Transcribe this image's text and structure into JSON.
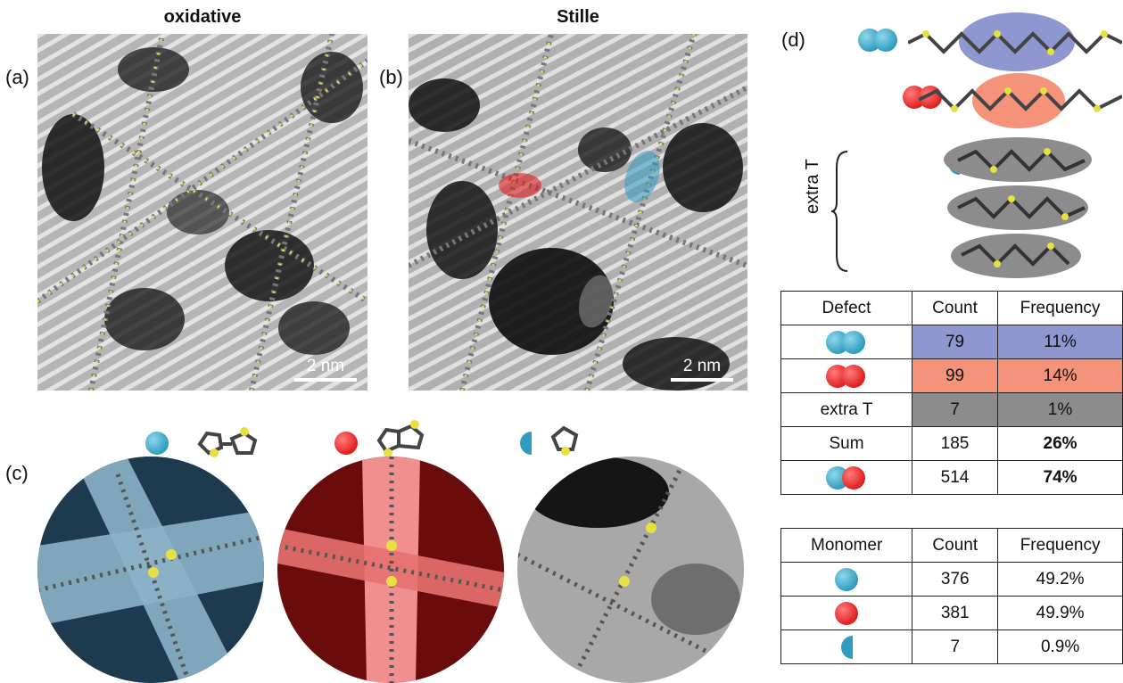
{
  "panels": {
    "a": {
      "label": "(a)",
      "title": "oxidative",
      "scale": "2 nm"
    },
    "b": {
      "label": "(b)",
      "title": "Stille",
      "scale": "2 nm"
    },
    "c": {
      "label": "(c)"
    },
    "d": {
      "label": "(d)",
      "extra_label": "extra T"
    }
  },
  "colors": {
    "blue": "#2f9bbf",
    "red": "#e01f1f",
    "purple_hl": "#8e97cf",
    "salmon_hl": "#f4937a",
    "gray_hl": "#8c8c8c"
  },
  "defect_table": {
    "headers": [
      "Defect",
      "Count",
      "Frequency"
    ],
    "rows": [
      {
        "icon": "blue-blue-pair-icon",
        "count": "79",
        "frequency": "11%"
      },
      {
        "icon": "red-red-pair-icon",
        "count": "99",
        "frequency": "14%"
      },
      {
        "label": "extra T",
        "count": "7",
        "frequency": "1%"
      },
      {
        "label": "Sum",
        "count": "185",
        "frequency": "26%"
      },
      {
        "icon": "blue-red-pair-icon",
        "count": "514",
        "frequency": "74%"
      }
    ]
  },
  "monomer_table": {
    "headers": [
      "Monomer",
      "Count",
      "Frequency"
    ],
    "rows": [
      {
        "icon": "blue-circle-icon",
        "count": "376",
        "frequency": "49.2%"
      },
      {
        "icon": "red-circle-icon",
        "count": "381",
        "frequency": "49.9%"
      },
      {
        "icon": "half-blue-circle-icon",
        "count": "7",
        "frequency": "0.9%"
      }
    ]
  }
}
